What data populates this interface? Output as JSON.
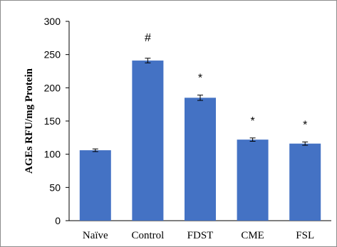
{
  "chart_data": {
    "type": "bar",
    "title": "",
    "xlabel": "",
    "ylabel": "AGEs RFU/mg Protein",
    "categories": [
      "Naïve",
      "Control",
      "FDST",
      "CME",
      "FSL"
    ],
    "values": [
      106,
      241,
      185,
      122,
      116
    ],
    "errors": [
      2,
      3.5,
      4,
      2.5,
      2.5
    ],
    "annotations": [
      "",
      "#",
      "*",
      "*",
      "*"
    ],
    "ylim": [
      0,
      300
    ],
    "yticks": [
      "0",
      "50",
      "100",
      "150",
      "200",
      "250",
      "300"
    ],
    "grid": false,
    "legend": "none",
    "bar_color": "#4472c4"
  }
}
